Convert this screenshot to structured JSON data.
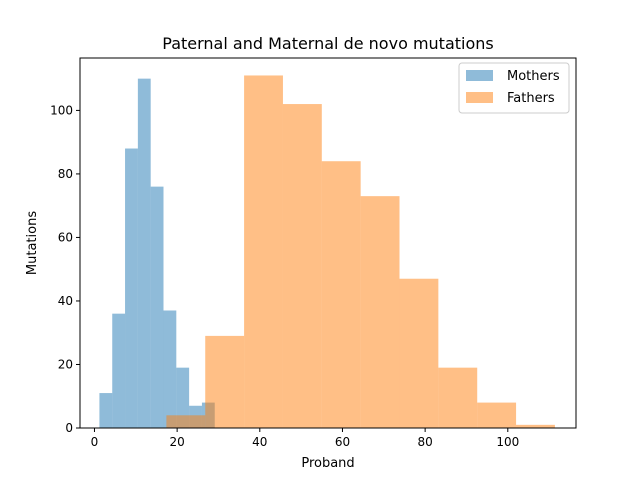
{
  "chart_data": {
    "type": "histogram",
    "title": "Paternal and Maternal de novo mutations",
    "xlabel": "Proband",
    "ylabel": "Mutations",
    "xlim": [
      -3.5,
      116.5
    ],
    "ylim": [
      0,
      116.5
    ],
    "xticks": [
      0,
      20,
      40,
      60,
      80,
      100
    ],
    "yticks": [
      0,
      20,
      40,
      60,
      80,
      100
    ],
    "legend_position": "top-right",
    "series": [
      {
        "name": "Mothers",
        "color": "#1f77b4",
        "alpha": 0.5,
        "bins": [
          {
            "x0": 1.2,
            "x1": 4.3,
            "count": 11
          },
          {
            "x0": 4.3,
            "x1": 7.4,
            "count": 36
          },
          {
            "x0": 7.4,
            "x1": 10.5,
            "count": 88
          },
          {
            "x0": 10.5,
            "x1": 13.6,
            "count": 110
          },
          {
            "x0": 13.6,
            "x1": 16.7,
            "count": 76
          },
          {
            "x0": 16.7,
            "x1": 19.8,
            "count": 37
          },
          {
            "x0": 19.8,
            "x1": 22.9,
            "count": 19
          },
          {
            "x0": 22.9,
            "x1": 26.0,
            "count": 7
          },
          {
            "x0": 26.0,
            "x1": 29.1,
            "count": 8
          },
          {
            "x0": 29.1,
            "x1": 32.2,
            "count": 0
          }
        ]
      },
      {
        "name": "Fathers",
        "color": "#ff7f0e",
        "alpha": 0.5,
        "bins": [
          {
            "x0": 17.4,
            "x1": 26.8,
            "count": 4
          },
          {
            "x0": 26.8,
            "x1": 36.2,
            "count": 29
          },
          {
            "x0": 36.2,
            "x1": 45.6,
            "count": 111
          },
          {
            "x0": 45.6,
            "x1": 55.0,
            "count": 102
          },
          {
            "x0": 55.0,
            "x1": 64.4,
            "count": 84
          },
          {
            "x0": 64.4,
            "x1": 73.8,
            "count": 73
          },
          {
            "x0": 73.8,
            "x1": 83.2,
            "count": 47
          },
          {
            "x0": 83.2,
            "x1": 92.6,
            "count": 19
          },
          {
            "x0": 92.6,
            "x1": 102.0,
            "count": 8
          },
          {
            "x0": 102.0,
            "x1": 111.4,
            "count": 1
          }
        ]
      }
    ]
  }
}
